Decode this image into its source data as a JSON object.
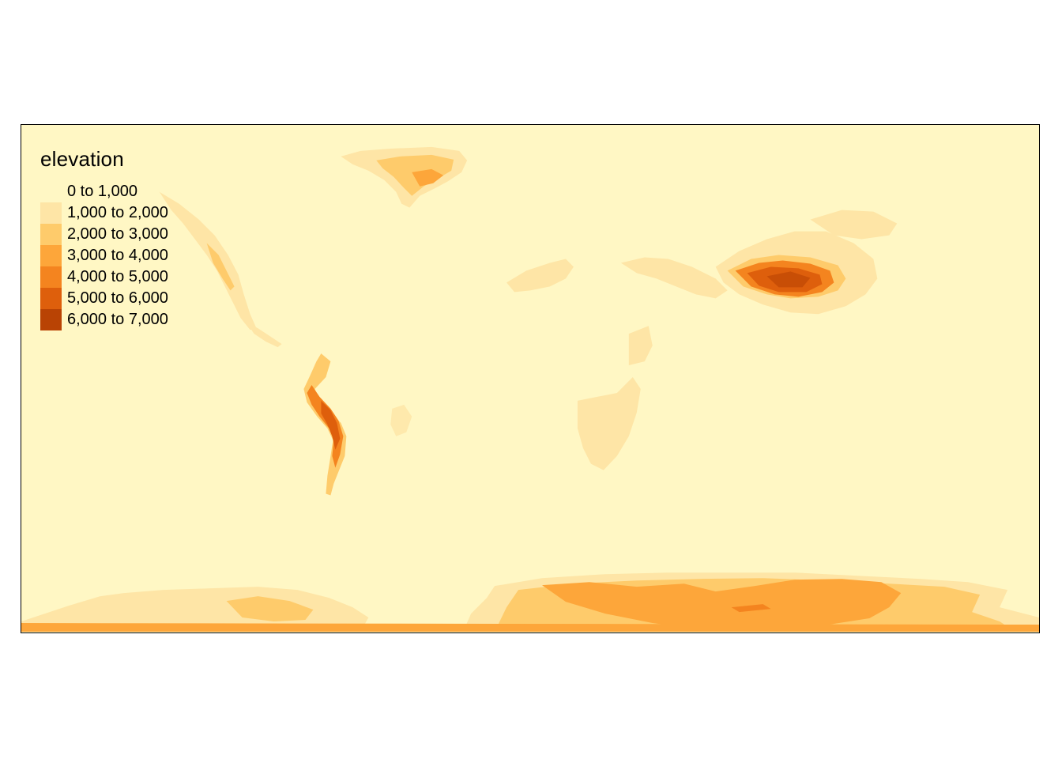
{
  "legend": {
    "title": "elevation",
    "items": [
      {
        "label": "0 to 1,000",
        "color": "#FFF7C4"
      },
      {
        "label": "1,000 to 2,000",
        "color": "#FEE5A6"
      },
      {
        "label": "2,000 to 3,000",
        "color": "#FECB6B"
      },
      {
        "label": "3,000 to 4,000",
        "color": "#FDA63A"
      },
      {
        "label": "4,000 to 5,000",
        "color": "#F4841F"
      },
      {
        "label": "5,000 to 6,000",
        "color": "#DE5F0C"
      },
      {
        "label": "6,000 to 7,000",
        "color": "#B94304"
      }
    ]
  }
}
